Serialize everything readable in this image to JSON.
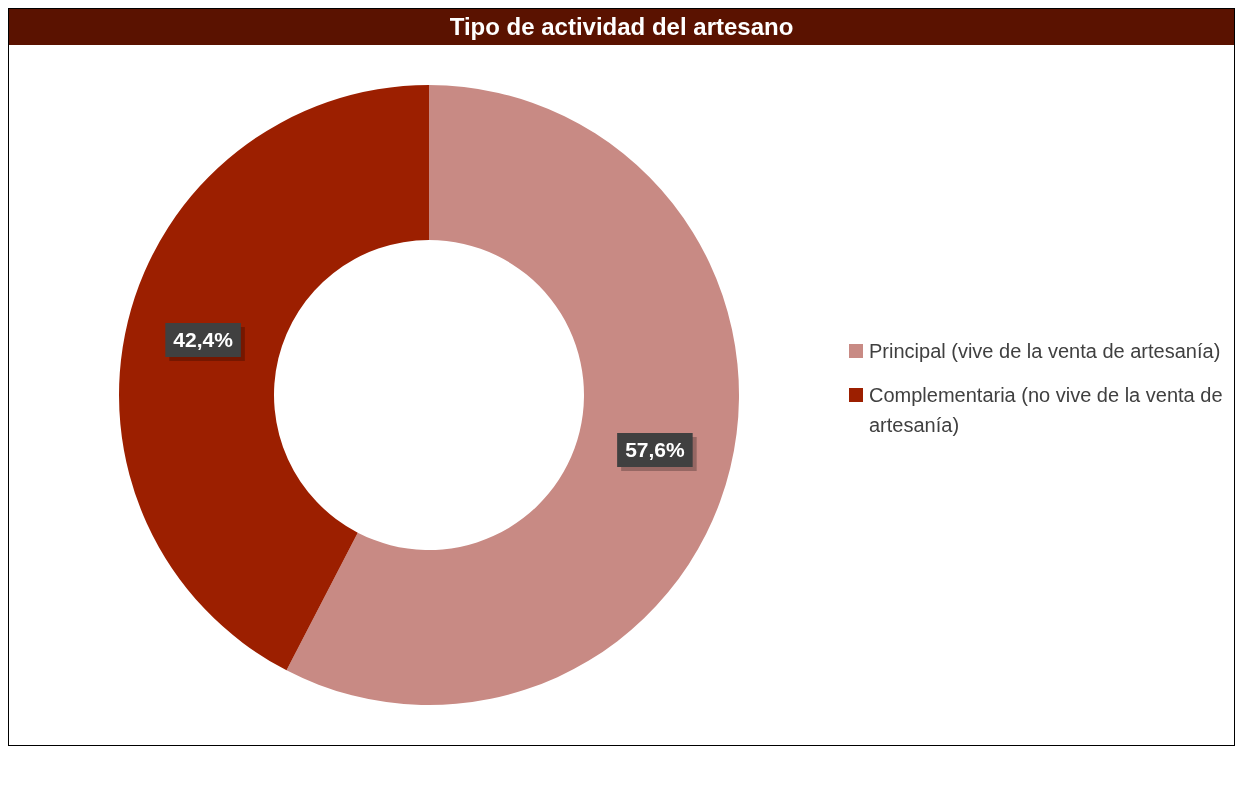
{
  "chart_data": {
    "type": "donut",
    "title": "Tipo de actividad del artesano",
    "categories": [
      "Principal (vive de la venta de artesanía)",
      "Complementaria (no vive de la venta de artesanía)"
    ],
    "values": [
      57.6,
      42.4
    ],
    "colors": [
      "#c88a84",
      "#9c1f00"
    ],
    "value_labels": [
      "57,6%",
      "42,4%"
    ],
    "legend": "right"
  }
}
